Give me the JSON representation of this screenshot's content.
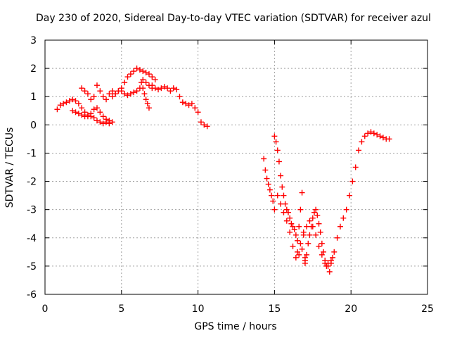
{
  "chart_data": {
    "type": "scatter",
    "title": "Day 230 of 2020, Sidereal Day-to-day VTEC variation (SDTVAR) for receiver azul",
    "xlabel": "GPS time / hours",
    "ylabel": "SDTVAR / TECUs",
    "xlim": [
      0,
      25
    ],
    "ylim": [
      -6,
      3
    ],
    "xticks": [
      0,
      5,
      10,
      15,
      20,
      25
    ],
    "yticks": [
      -6,
      -5,
      -4,
      -3,
      -2,
      -1,
      0,
      1,
      2,
      3
    ],
    "grid": true,
    "marker": "+",
    "color": "#ff0000",
    "series": [
      {
        "name": "SDTVAR",
        "x": [
          0.8,
          1.0,
          1.2,
          1.4,
          1.6,
          1.8,
          2.0,
          2.2,
          2.4,
          2.6,
          2.8,
          3.0,
          3.2,
          3.4,
          3.6,
          3.8,
          4.0,
          4.2,
          1.8,
          2.0,
          2.2,
          2.4,
          2.6,
          2.8,
          3.0,
          3.2,
          3.4,
          3.6,
          3.8,
          4.0,
          4.2,
          4.4,
          2.4,
          2.6,
          2.8,
          3.0,
          3.2,
          3.4,
          3.6,
          3.8,
          4.0,
          4.2,
          4.4,
          4.6,
          4.8,
          5.0,
          5.2,
          5.4,
          5.6,
          5.8,
          6.0,
          6.2,
          6.4,
          6.6,
          6.8,
          7.0,
          7.2,
          4.4,
          4.6,
          4.8,
          5.0,
          5.2,
          5.4,
          5.6,
          5.8,
          6.0,
          6.2,
          6.4,
          6.6,
          6.8,
          7.0,
          6.3,
          6.4,
          6.5,
          6.6,
          6.7,
          6.8,
          7.0,
          7.2,
          7.4,
          7.6,
          7.8,
          8.0,
          8.2,
          8.4,
          8.6,
          8.8,
          9.0,
          9.2,
          9.4,
          9.6,
          9.8,
          10.0,
          10.2,
          10.4,
          10.6,
          14.3,
          14.4,
          14.5,
          14.6,
          14.7,
          14.8,
          14.9,
          15.0,
          15.0,
          15.1,
          15.2,
          15.3,
          15.4,
          15.5,
          15.6,
          15.7,
          15.8,
          15.9,
          16.0,
          16.1,
          16.2,
          16.3,
          16.4,
          16.5,
          16.6,
          16.7,
          16.8,
          16.9,
          17.0,
          15.2,
          15.4,
          15.6,
          15.8,
          16.0,
          16.2,
          16.4,
          16.6,
          16.8,
          17.0,
          17.0,
          17.1,
          17.2,
          17.3,
          17.4,
          17.5,
          17.6,
          17.7,
          17.8,
          17.9,
          18.0,
          18.1,
          18.2,
          18.3,
          18.4,
          18.5,
          18.6,
          18.7,
          18.8,
          16.5,
          16.7,
          16.9,
          17.1,
          17.3,
          17.5,
          17.7,
          17.9,
          18.1,
          18.3,
          18.5,
          18.7,
          18.9,
          19.1,
          19.3,
          19.5,
          19.7,
          19.9,
          20.1,
          20.3,
          20.5,
          20.7,
          20.9,
          21.1,
          21.3,
          21.5,
          21.7,
          21.9,
          22.1,
          22.3,
          22.5
        ],
        "y": [
          0.55,
          0.7,
          0.75,
          0.8,
          0.85,
          0.9,
          0.85,
          0.75,
          0.6,
          0.45,
          0.35,
          0.3,
          0.25,
          0.15,
          0.1,
          0.05,
          0.1,
          0.15,
          0.5,
          0.45,
          0.4,
          0.35,
          0.3,
          0.3,
          0.4,
          0.55,
          0.6,
          0.45,
          0.3,
          0.2,
          0.05,
          0.1,
          1.3,
          1.2,
          1.1,
          0.9,
          1.0,
          1.4,
          1.2,
          1.0,
          0.9,
          1.1,
          1.2,
          1.1,
          1.2,
          1.3,
          1.5,
          1.7,
          1.8,
          1.9,
          2.0,
          1.95,
          1.9,
          1.85,
          1.8,
          1.7,
          1.6,
          1.0,
          1.1,
          1.2,
          1.2,
          1.1,
          1.05,
          1.1,
          1.15,
          1.2,
          1.3,
          1.6,
          1.5,
          1.4,
          1.3,
          1.5,
          1.3,
          1.1,
          0.9,
          0.75,
          0.6,
          1.4,
          1.3,
          1.25,
          1.3,
          1.35,
          1.3,
          1.2,
          1.3,
          1.25,
          1.0,
          0.8,
          0.75,
          0.7,
          0.75,
          0.6,
          0.45,
          0.1,
          0.0,
          -0.05,
          -1.2,
          -1.6,
          -1.9,
          -2.1,
          -2.3,
          -2.5,
          -2.7,
          -3.0,
          -0.4,
          -0.6,
          -0.9,
          -1.3,
          -1.8,
          -2.2,
          -2.5,
          -2.8,
          -3.0,
          -3.1,
          -3.3,
          -3.5,
          -3.6,
          -3.7,
          -3.9,
          -4.1,
          -3.6,
          -3.0,
          -2.4,
          -3.8,
          -4.8,
          -2.5,
          -2.8,
          -3.1,
          -3.4,
          -3.8,
          -4.3,
          -4.7,
          -4.6,
          -4.4,
          -4.7,
          -4.9,
          -4.6,
          -4.2,
          -3.9,
          -3.6,
          -3.3,
          -3.1,
          -3.0,
          -3.2,
          -3.5,
          -3.8,
          -4.2,
          -4.5,
          -4.8,
          -5.0,
          -4.9,
          -5.2,
          -4.9,
          -4.7,
          -4.5,
          -4.2,
          -3.9,
          -3.6,
          -3.4,
          -3.6,
          -3.9,
          -4.3,
          -4.6,
          -4.9,
          -5.0,
          -4.8,
          -4.5,
          -4.0,
          -3.6,
          -3.3,
          -3.0,
          -2.5,
          -2.0,
          -1.5,
          -0.9,
          -0.6,
          -0.4,
          -0.3,
          -0.25,
          -0.3,
          -0.35,
          -0.4,
          -0.45,
          -0.5,
          -0.5
        ]
      }
    ]
  }
}
